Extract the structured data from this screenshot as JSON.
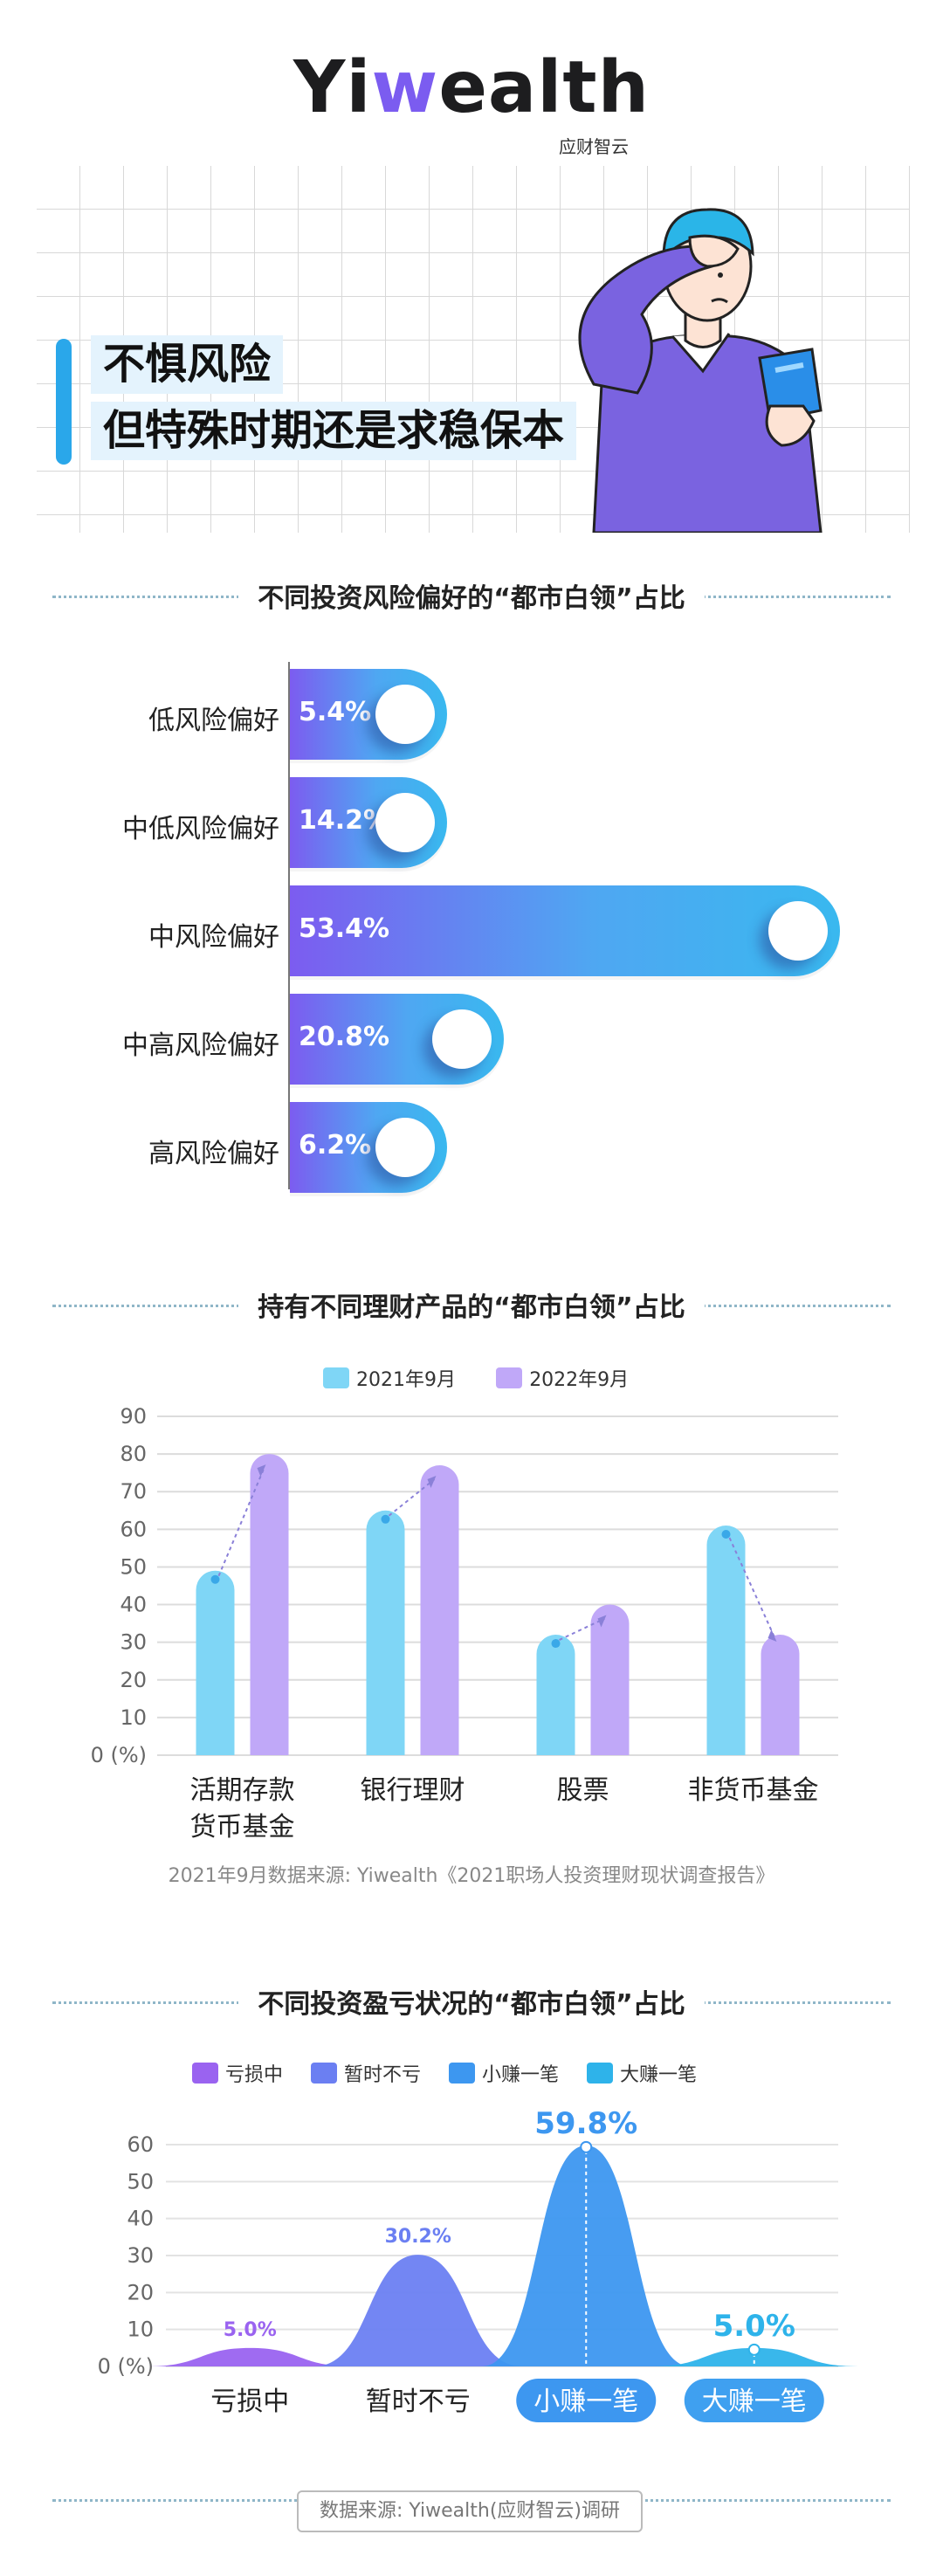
{
  "logo": {
    "text_pre": "Yi",
    "text_w": "w",
    "text_post": "ealth",
    "sub": "应财智云"
  },
  "hero": {
    "line1": "不惧风险",
    "line2": "但特殊时期还是求稳保本"
  },
  "sections": {
    "risk_title": "不同投资风险偏好的“都市白领”占比",
    "products_title": "持有不同理财产品的“都市白领”占比",
    "pnl_title": "不同投资盈亏状况的“都市白领”占比"
  },
  "chart_data": [
    {
      "type": "bar",
      "orientation": "horizontal",
      "title": "不同投资风险偏好的“都市白领”占比",
      "categories": [
        "低风险偏好",
        "中低风险偏好",
        "中风险偏好",
        "中高风险偏好",
        "高风险偏好"
      ],
      "values": [
        5.4,
        14.2,
        53.4,
        20.8,
        6.2
      ],
      "value_labels": [
        "5.4%",
        "14.2%",
        "53.4%",
        "20.8%",
        "6.2%"
      ],
      "colors": {
        "start": "#7c5cf0",
        "end": "#39b8ef"
      }
    },
    {
      "type": "bar",
      "title": "持有不同理财产品的“都市白领”占比",
      "categories": [
        "活期存款\n货币基金",
        "银行理财",
        "股票",
        "非货币基金"
      ],
      "series": [
        {
          "name": "2021年9月",
          "values": [
            49,
            65,
            32,
            61
          ],
          "color": "#7fd6f6"
        },
        {
          "name": "2022年9月",
          "values": [
            80,
            77,
            40,
            32
          ],
          "color": "#c0a8f8"
        }
      ],
      "ylim": [
        0,
        90
      ],
      "yticks": [
        "0 (%)",
        "10",
        "20",
        "30",
        "40",
        "50",
        "60",
        "70",
        "80",
        "90"
      ],
      "grid": true,
      "legend": "top-center",
      "source": "2021年9月数据来源: Yiwealth《2021职场人投资理财现状调查报告》"
    },
    {
      "type": "area",
      "title": "不同投资盈亏状况的“都市白领”占比",
      "categories": [
        "亏损中",
        "暂时不亏",
        "小赚一笔",
        "大赚一笔"
      ],
      "values": [
        5.0,
        30.2,
        59.8,
        5.0
      ],
      "value_labels": [
        "5.0%",
        "30.2%",
        "59.8%",
        "5.0%"
      ],
      "colors": [
        "#9a63f0",
        "#6b7ff2",
        "#3d97f0",
        "#2eb3ea"
      ],
      "ylim": [
        0,
        60
      ],
      "yticks": [
        "0 (%)",
        "10",
        "20",
        "30",
        "40",
        "50",
        "60"
      ],
      "legend": "top-center"
    }
  ],
  "footer": {
    "source": "数据来源: Yiwealth(应财智云)调研"
  }
}
